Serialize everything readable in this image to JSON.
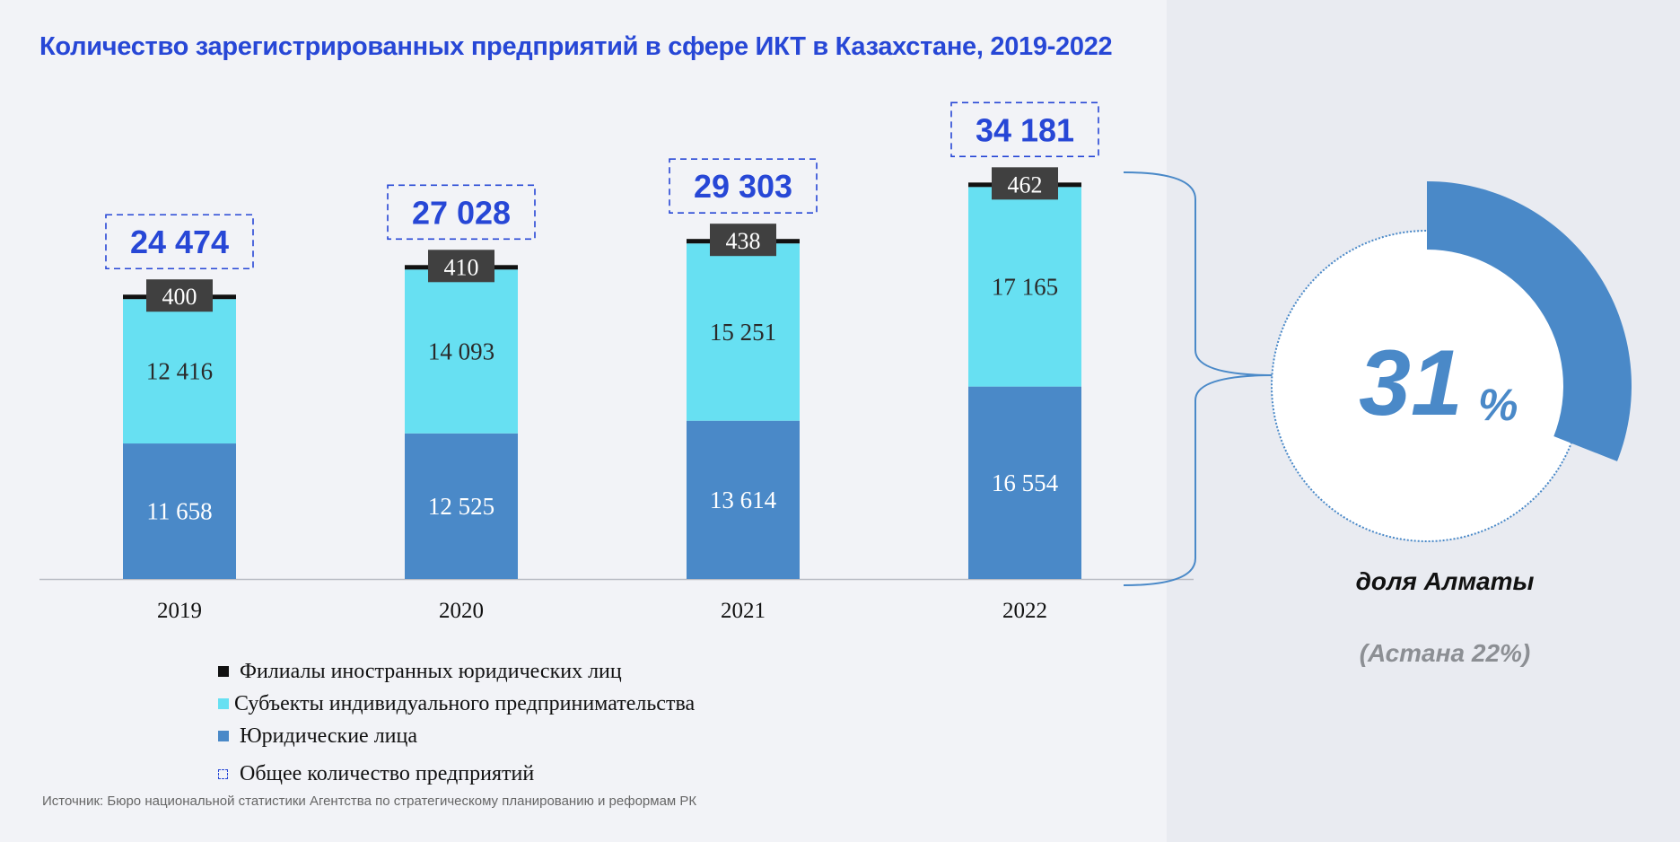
{
  "chart_data": {
    "type": "bar",
    "stacked": true,
    "title": "Количество зарегистрированных предприятий в сфере ИКТ в Казахстане, 2019-2022",
    "categories": [
      "2019",
      "2020",
      "2021",
      "2022"
    ],
    "series": [
      {
        "name": "Юридические лица",
        "values": [
          11658,
          12525,
          13614,
          16554
        ],
        "labels": [
          "11 658",
          "12 525",
          "13 614",
          "16 554"
        ],
        "color": "#4a89c8"
      },
      {
        "name": "Субъекты индивидуального предпринимательства",
        "values": [
          12416,
          14093,
          15251,
          17165
        ],
        "labels": [
          "12 416",
          "14 093",
          "15 251",
          "17 165"
        ],
        "color": "#67e0f2"
      },
      {
        "name": "Филиалы иностранных юридических лиц",
        "values": [
          400,
          410,
          438,
          462
        ],
        "labels": [
          "400",
          "410",
          "438",
          "462"
        ],
        "color": "#111111"
      }
    ],
    "totals": {
      "name": "Общее количество предприятий",
      "values": [
        24474,
        27028,
        29303,
        34181
      ],
      "labels": [
        "24 474",
        "27 028",
        "29 303",
        "34 181"
      ]
    },
    "ylim": [
      0,
      34181
    ],
    "grid": false,
    "legend_position": "bottom-left"
  },
  "share": {
    "value_number": "31",
    "value_unit": "%",
    "fraction": 0.31,
    "caption": "доля Алматы",
    "note": "(Астана 22%)",
    "color": "#4a89c8"
  },
  "source": "Источник: Бюро национальной статистики Агентства по стратегическому планированию и реформам РК",
  "colors": {
    "title": "#2747d6",
    "total_label": "#2747d6",
    "branch_badge": "#404040"
  }
}
